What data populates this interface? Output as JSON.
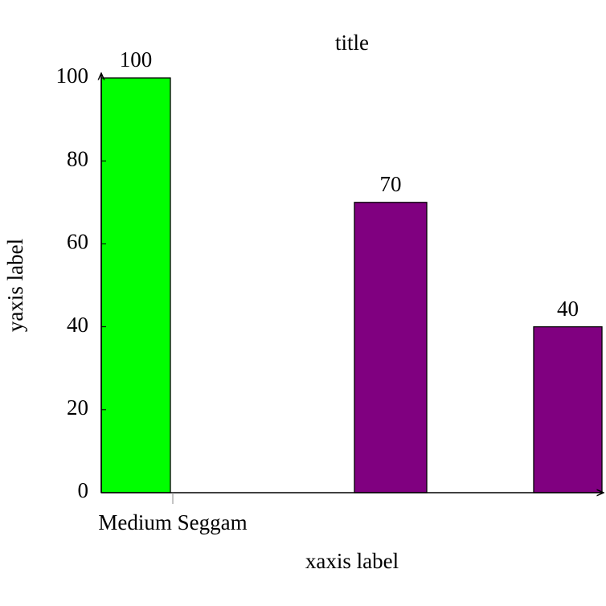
{
  "chart_data": {
    "type": "bar",
    "title": "title",
    "x_label": "xaxis label",
    "y_label": "yaxis label",
    "categories": [
      "Medium Seggam",
      null,
      null
    ],
    "values": [
      100,
      70,
      40
    ],
    "colors": [
      "#00ff00",
      "#800080",
      "#800080"
    ],
    "ylim": [
      0,
      100
    ],
    "yticks": [
      0,
      20,
      40,
      60,
      80,
      100
    ],
    "grid": false
  }
}
